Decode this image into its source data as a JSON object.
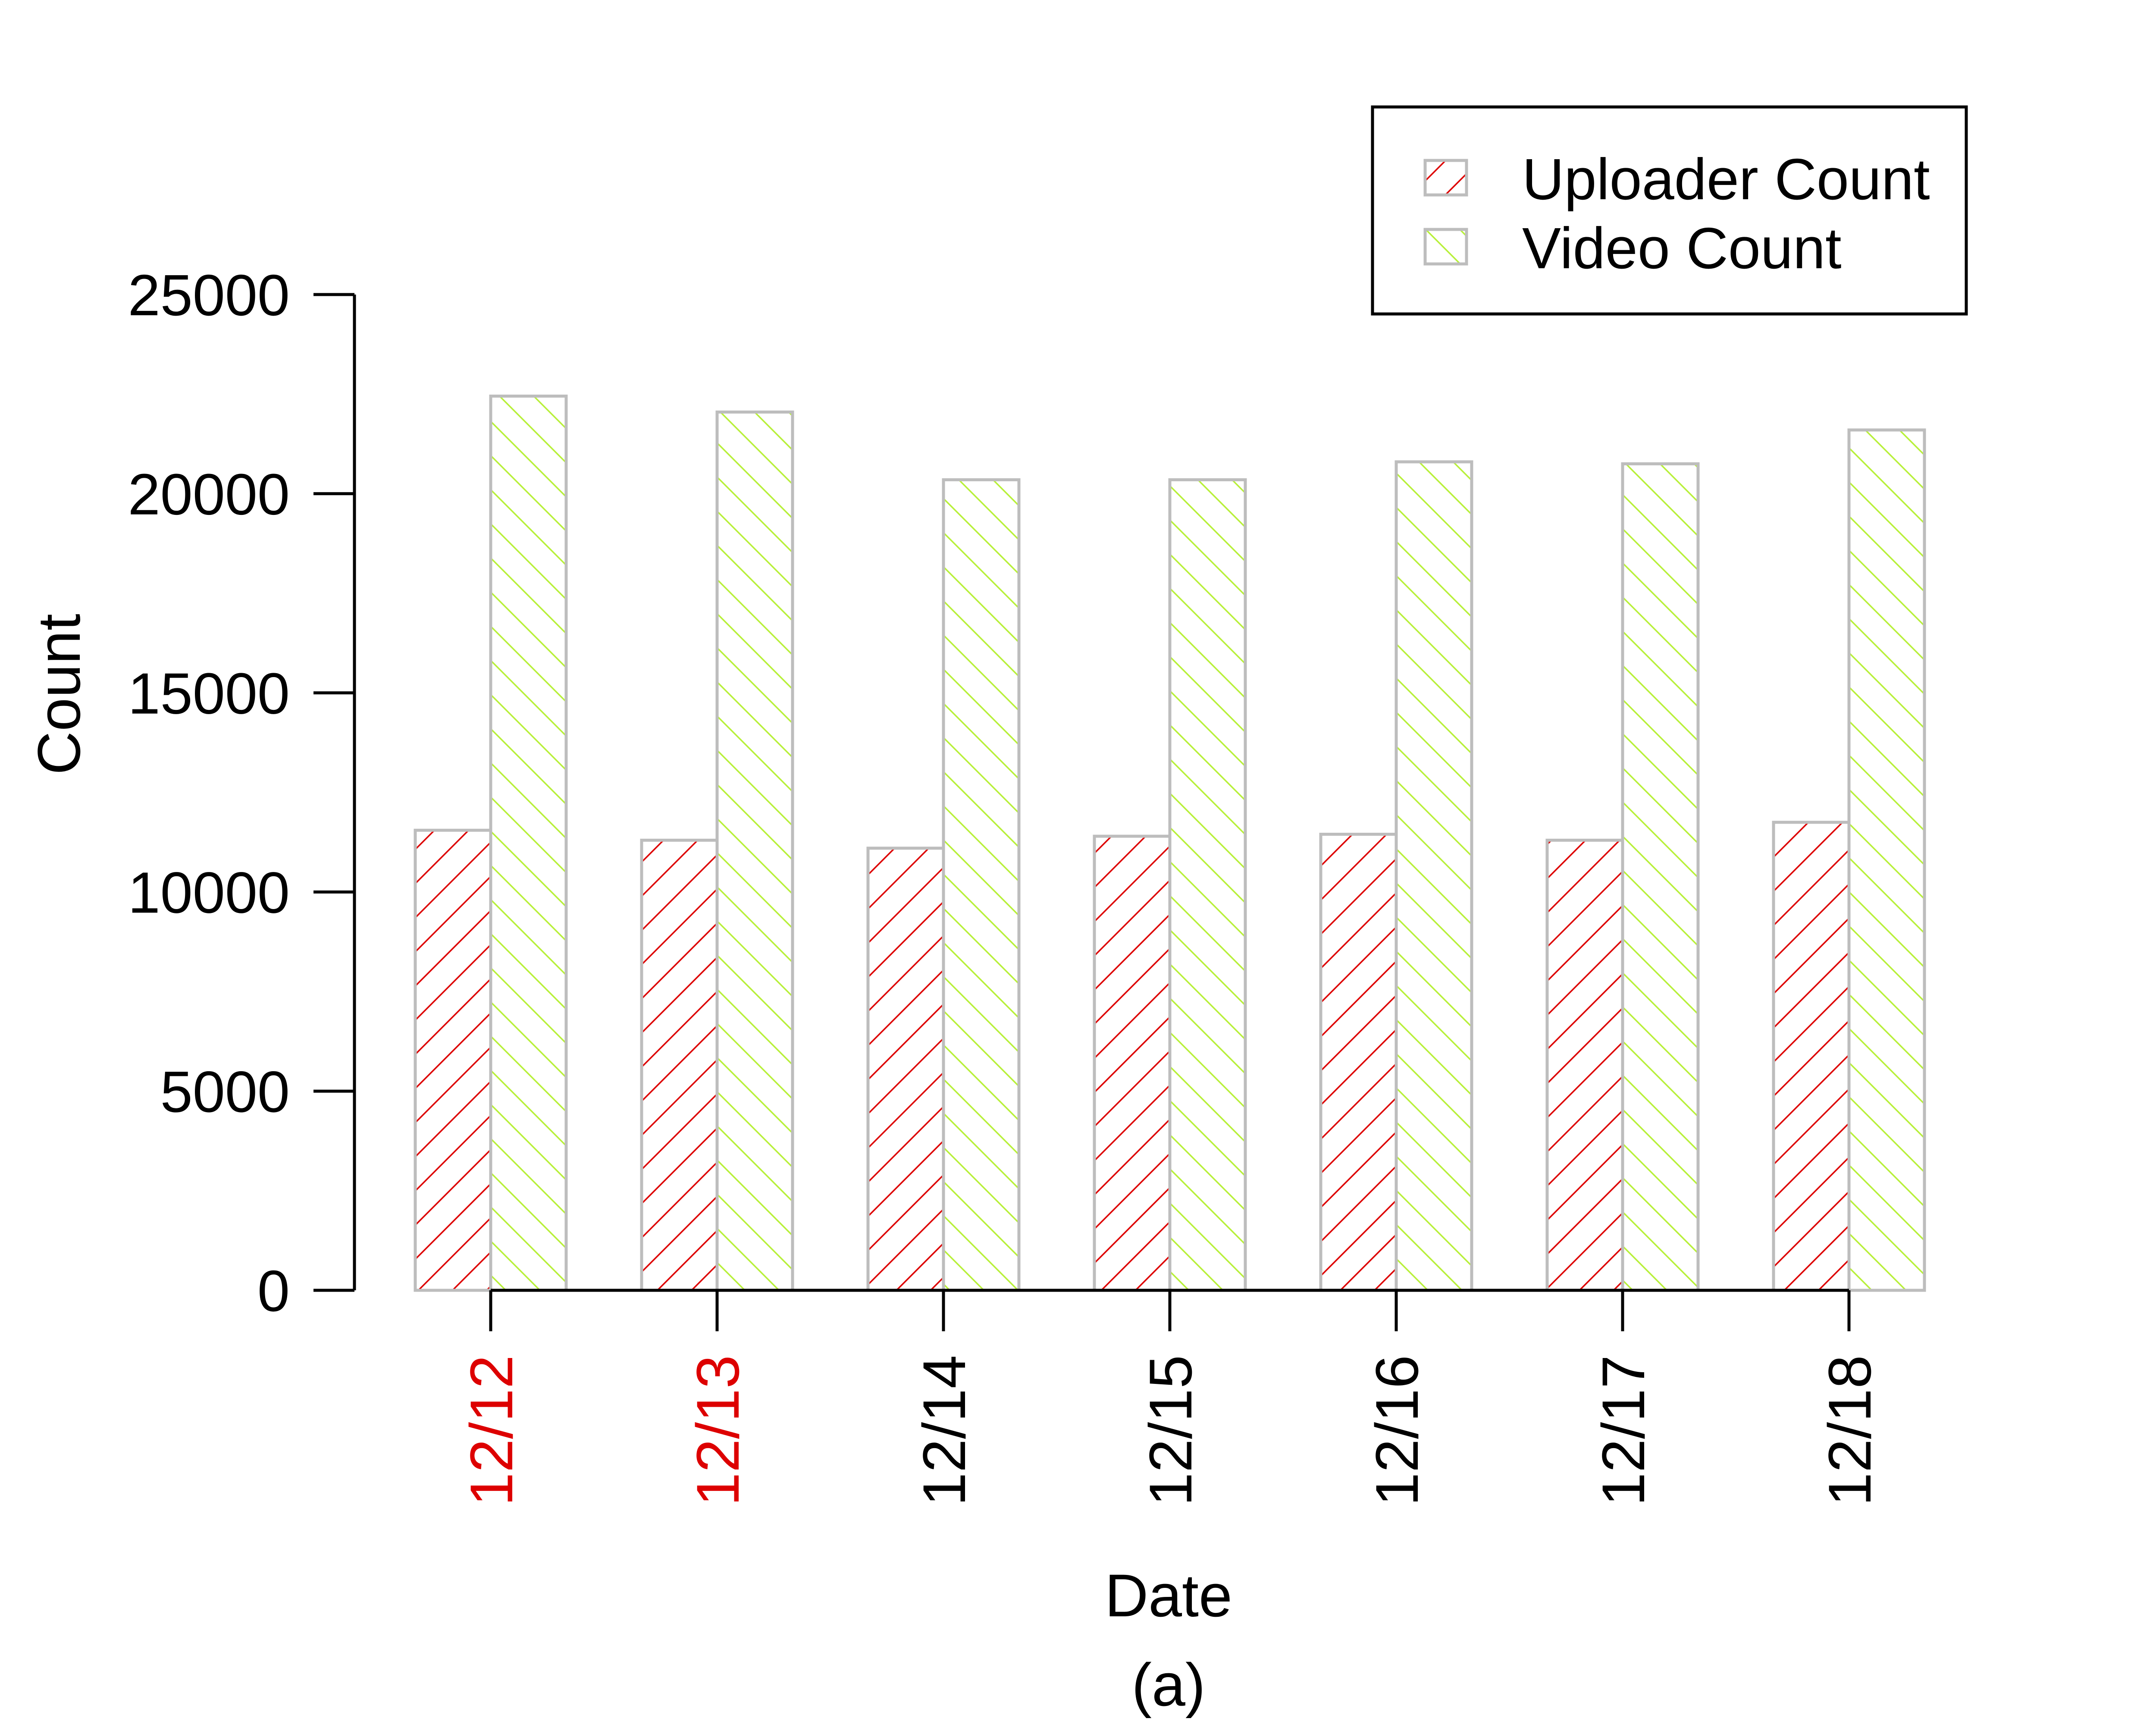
{
  "chart_data": {
    "type": "bar",
    "categories": [
      "12/12",
      "12/13",
      "12/14",
      "12/15",
      "12/16",
      "12/17",
      "12/18"
    ],
    "highlighted_categories": [
      "12/12",
      "12/13"
    ],
    "series": [
      {
        "name": "Uploader Count",
        "values": [
          11550,
          11300,
          11100,
          11400,
          11450,
          11300,
          11750
        ]
      },
      {
        "name": "Video Count",
        "values": [
          22450,
          22050,
          20350,
          20350,
          20800,
          20750,
          21600
        ]
      }
    ],
    "xlabel": "Date",
    "ylabel": "Count",
    "yticks": [
      0,
      5000,
      10000,
      15000,
      20000,
      25000
    ],
    "ylim": [
      0,
      25000
    ],
    "grid": false,
    "legend_position": "top-right",
    "caption": "(a)",
    "colors": {
      "uploader": "#dd0000",
      "video": "#b8f03a",
      "bar_border": "#bdbdbd",
      "axis": "#000000",
      "highlight_tick": "#dd0000"
    }
  }
}
